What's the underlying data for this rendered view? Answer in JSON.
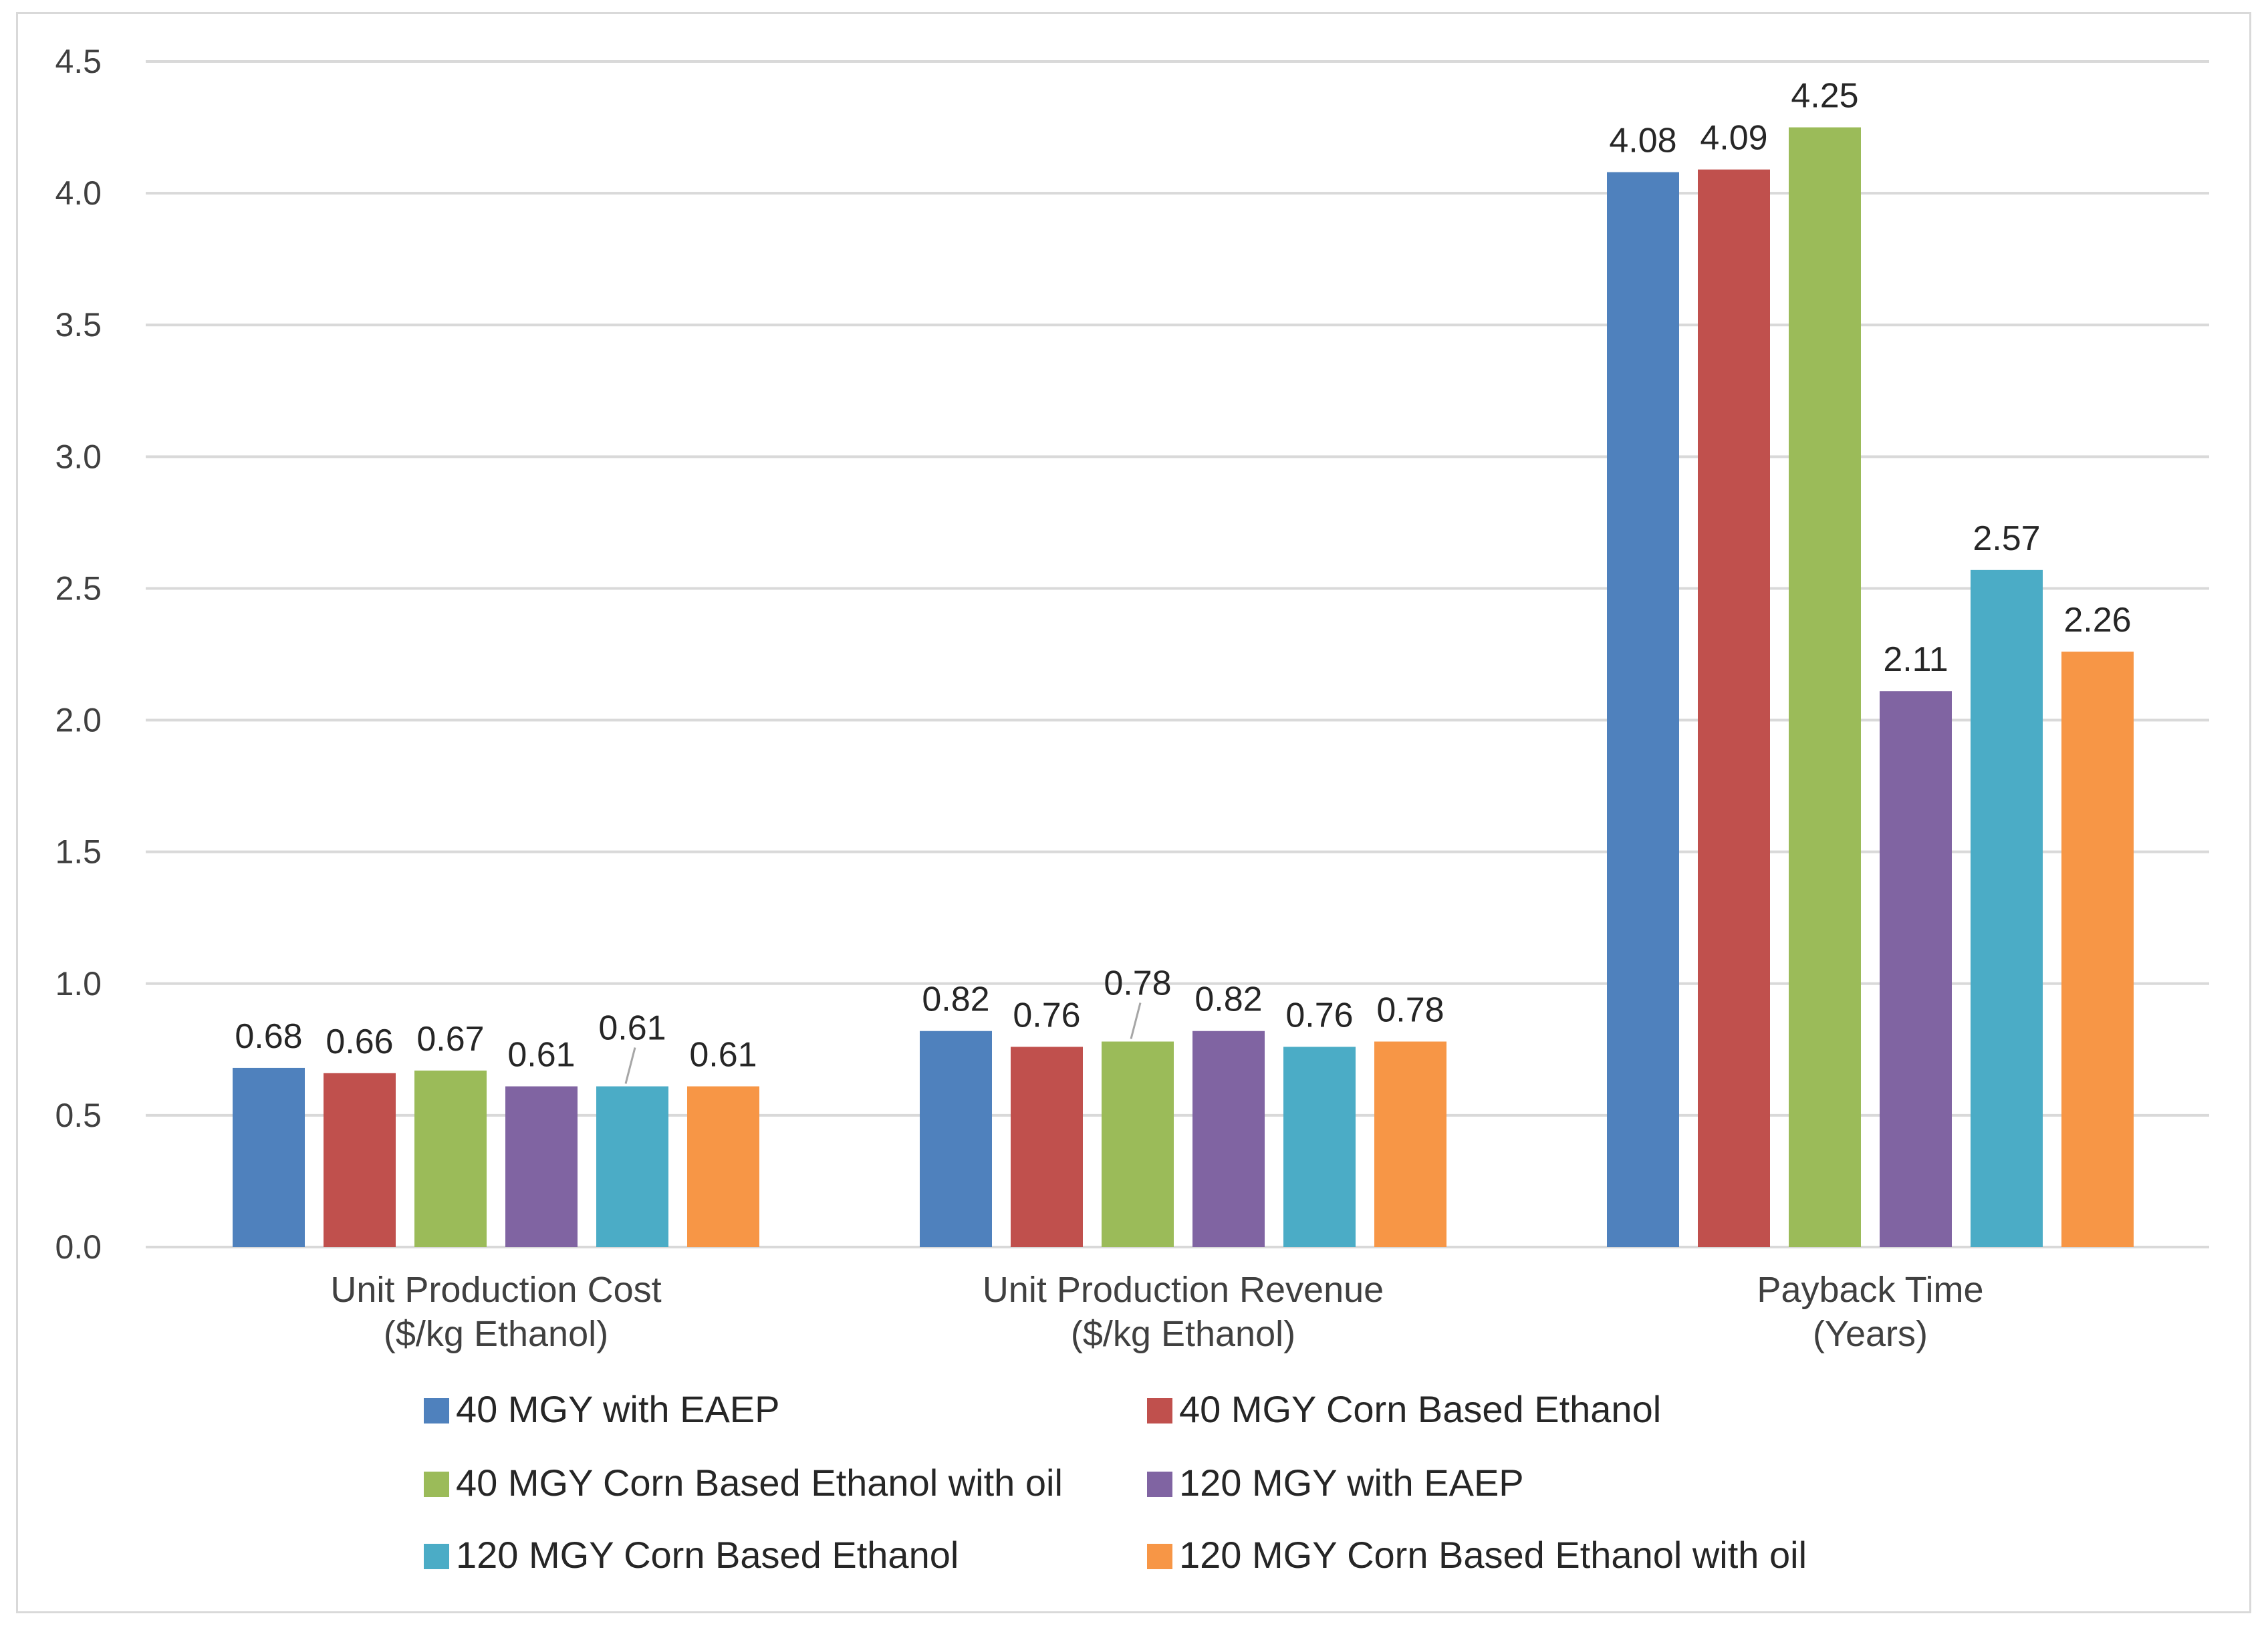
{
  "chart_data": {
    "type": "bar",
    "title": "",
    "xlabel": "",
    "ylabel": "",
    "ylim": [
      0,
      4.5
    ],
    "yticks": [
      "0.0",
      "0.5",
      "1.0",
      "1.5",
      "2.0",
      "2.5",
      "3.0",
      "3.5",
      "4.0",
      "4.5"
    ],
    "grid": true,
    "legend_position": "bottom",
    "categories": [
      [
        "Unit Production Cost",
        "($/kg Ethanol)"
      ],
      [
        "Unit Production Revenue",
        "($/kg Ethanol)"
      ],
      [
        "Payback Time",
        "(Years)"
      ]
    ],
    "series": [
      {
        "name": "40 MGY with EAEP",
        "color": "#4f81bd",
        "values": [
          0.68,
          0.82,
          4.08
        ],
        "labels": [
          "0.68",
          "0.82",
          "4.08"
        ]
      },
      {
        "name": "40 MGY Corn Based Ethanol",
        "color": "#c0504d",
        "values": [
          0.66,
          0.76,
          4.09
        ],
        "labels": [
          "0.66",
          "0.76",
          "4.09"
        ]
      },
      {
        "name": "40 MGY Corn Based Ethanol with oil",
        "color": "#9bbb59",
        "values": [
          0.67,
          0.78,
          4.25
        ],
        "labels": [
          "0.67",
          "0.78",
          "4.25"
        ]
      },
      {
        "name": "120 MGY with EAEP",
        "color": "#8064a2",
        "values": [
          0.61,
          0.82,
          2.11
        ],
        "labels": [
          "0.61",
          "0.82",
          "2.11"
        ]
      },
      {
        "name": "120 MGY Corn Based Ethanol",
        "color": "#4bacc6",
        "values": [
          0.61,
          0.76,
          2.57
        ],
        "labels": [
          "0.61",
          "0.76",
          "2.57"
        ]
      },
      {
        "name": "120 MGY Corn Based Ethanol with oil",
        "color": "#f79646",
        "values": [
          0.61,
          0.78,
          2.26
        ],
        "labels": [
          "0.61",
          "0.78",
          "2.26"
        ]
      }
    ]
  }
}
